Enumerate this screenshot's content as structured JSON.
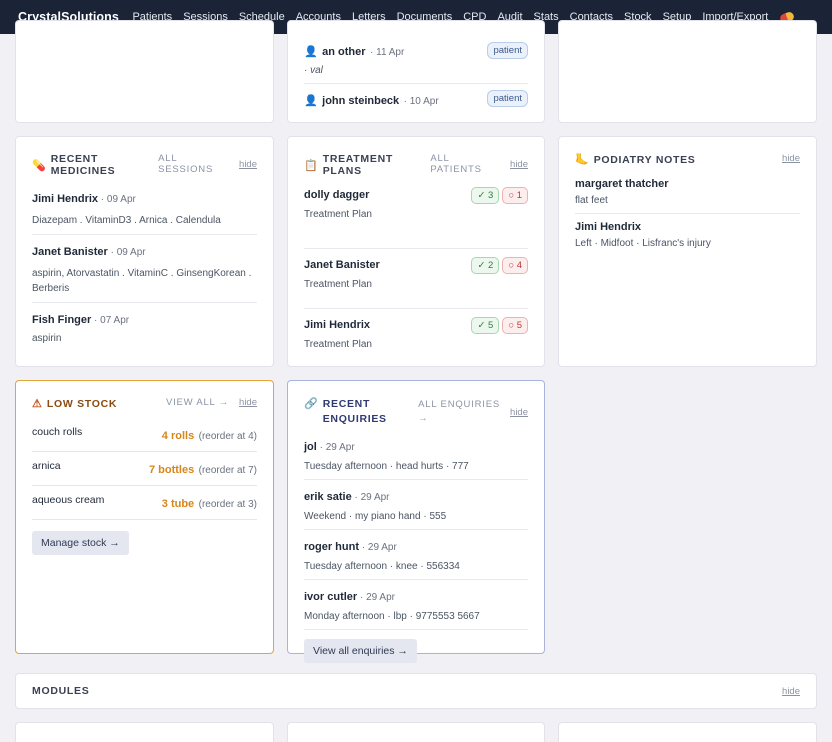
{
  "nav": {
    "brand": "CrystalSolutions",
    "items": [
      "Patients",
      "Sessions",
      "Schedule",
      "Accounts",
      "Letters",
      "Documents",
      "CPD",
      "Audit",
      "Stats",
      "Contacts",
      "Stock",
      "Setup",
      "Import/Export"
    ],
    "trailing_icon": "pill-icon"
  },
  "top_middle": {
    "items": [
      {
        "name": "an other",
        "date": "11 Apr",
        "badge": "patient",
        "note": "· val"
      },
      {
        "name": "john steinbeck",
        "date": "10 Apr",
        "badge": "patient"
      }
    ]
  },
  "medicines": {
    "title": "RECENT MEDICINES",
    "icon": "pill-icon",
    "link": "ALL SESSIONS",
    "hide": "hide",
    "items": [
      {
        "name": "Jimi Hendrix",
        "date": "09 Apr",
        "meds": "Diazepam . VitaminD3 . Arnica . Calendula"
      },
      {
        "name": "Janet Banister",
        "date": "09 Apr",
        "meds": "aspirin, Atorvastatin . VitaminC . GinsengKorean . Berberis"
      },
      {
        "name": "Fish Finger",
        "date": "07 Apr",
        "meds": "aspirin"
      }
    ]
  },
  "treatment": {
    "title": "TREATMENT PLANS",
    "icon": "clipboard-icon",
    "link": "ALL PATIENTS",
    "hide": "hide",
    "items": [
      {
        "name": "dolly dagger",
        "sub": "Treatment Plan",
        "done": "✓ 3",
        "open": "○ 1"
      },
      {
        "name": "Janet Banister",
        "sub": "Treatment Plan",
        "done": "✓ 2",
        "open": "○ 4"
      },
      {
        "name": "Jimi Hendrix",
        "sub": "Treatment Plan",
        "done": "✓ 5",
        "open": "○ 5"
      }
    ]
  },
  "podiatry": {
    "title": "PODIATRY NOTES",
    "icon": "foot-icon",
    "hide": "hide",
    "items": [
      {
        "name": "margaret thatcher",
        "sub": "flat feet"
      },
      {
        "name": "Jimi Hendrix",
        "sub": "Left · Midfoot · Lisfranc's injury"
      }
    ]
  },
  "low_stock": {
    "title": "LOW STOCK",
    "icon": "warning-icon",
    "link": "VIEW ALL →",
    "hide": "hide",
    "items": [
      {
        "name": "couch rolls",
        "qty": "4 rolls",
        "reorder": "(reorder at 4)"
      },
      {
        "name": "arnica",
        "qty": "7 bottles",
        "reorder": "(reorder at 7)"
      },
      {
        "name": "aqueous cream",
        "qty": "3 tube",
        "reorder": "(reorder at 3)"
      }
    ],
    "button": "Manage stock →",
    "accent": "#e3a43c"
  },
  "enquiries": {
    "title_line1": "RECENT",
    "title_line2": "ENQUIRIES",
    "icon": "link-icon",
    "link_line1": "ALL ENQUIRIES",
    "link_line2": "→",
    "hide": "hide",
    "items": [
      {
        "name": "jol",
        "date": "29 Apr",
        "sub": "Tuesday afternoon · head hurts · 777"
      },
      {
        "name": "erik satie",
        "date": "29 Apr",
        "sub": "Weekend · my piano hand · 555"
      },
      {
        "name": "roger hunt",
        "date": "29 Apr",
        "sub": "Tuesday afternoon · knee · 556334"
      },
      {
        "name": "ivor cutler",
        "date": "29 Apr",
        "sub": "Monday afternoon · lbp · 9775553 5667"
      }
    ],
    "button": "View all enquiries →",
    "accent": "#a9b3dc"
  },
  "modules": {
    "title": "MODULES",
    "hide": "hide"
  }
}
